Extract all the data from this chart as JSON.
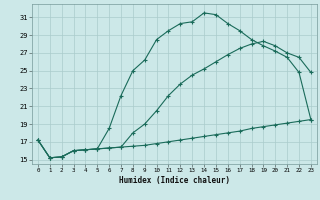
{
  "xlabel": "Humidex (Indice chaleur)",
  "bg_color": "#cce8e8",
  "grid_color": "#aacccc",
  "line_color": "#1a6b5a",
  "xlim": [
    -0.5,
    23.5
  ],
  "ylim": [
    14.5,
    32.5
  ],
  "xticks": [
    0,
    1,
    2,
    3,
    4,
    5,
    6,
    7,
    8,
    9,
    10,
    11,
    12,
    13,
    14,
    15,
    16,
    17,
    18,
    19,
    20,
    21,
    22,
    23
  ],
  "yticks": [
    15,
    17,
    19,
    21,
    23,
    25,
    27,
    29,
    31
  ],
  "line1_x": [
    0,
    1,
    2,
    3,
    4,
    5,
    6,
    7,
    8,
    9,
    10,
    11,
    12,
    13,
    14,
    15,
    16,
    17,
    18,
    19,
    20,
    21,
    22,
    23
  ],
  "line1_y": [
    17.2,
    15.2,
    15.3,
    16.0,
    16.1,
    16.2,
    18.5,
    22.2,
    25.0,
    26.2,
    28.5,
    29.5,
    30.3,
    30.5,
    31.5,
    31.3,
    30.3,
    29.5,
    28.5,
    27.8,
    27.2,
    26.5,
    24.8,
    19.5
  ],
  "line2_x": [
    0,
    1,
    2,
    3,
    4,
    5,
    6,
    7,
    8,
    9,
    10,
    11,
    12,
    13,
    14,
    15,
    16,
    17,
    18,
    19,
    20,
    21,
    22,
    23
  ],
  "line2_y": [
    17.2,
    15.2,
    15.3,
    16.0,
    16.1,
    16.2,
    16.3,
    16.4,
    18.0,
    19.0,
    20.5,
    22.2,
    23.5,
    24.5,
    25.2,
    26.0,
    26.8,
    27.5,
    28.0,
    28.3,
    27.8,
    27.0,
    26.5,
    24.8
  ],
  "line3_x": [
    0,
    1,
    2,
    3,
    4,
    5,
    6,
    7,
    8,
    9,
    10,
    11,
    12,
    13,
    14,
    15,
    16,
    17,
    18,
    19,
    20,
    21,
    22,
    23
  ],
  "line3_y": [
    17.2,
    15.2,
    15.3,
    16.0,
    16.1,
    16.2,
    16.3,
    16.4,
    16.5,
    16.6,
    16.8,
    17.0,
    17.2,
    17.4,
    17.6,
    17.8,
    18.0,
    18.2,
    18.5,
    18.7,
    18.9,
    19.1,
    19.3,
    19.5
  ]
}
